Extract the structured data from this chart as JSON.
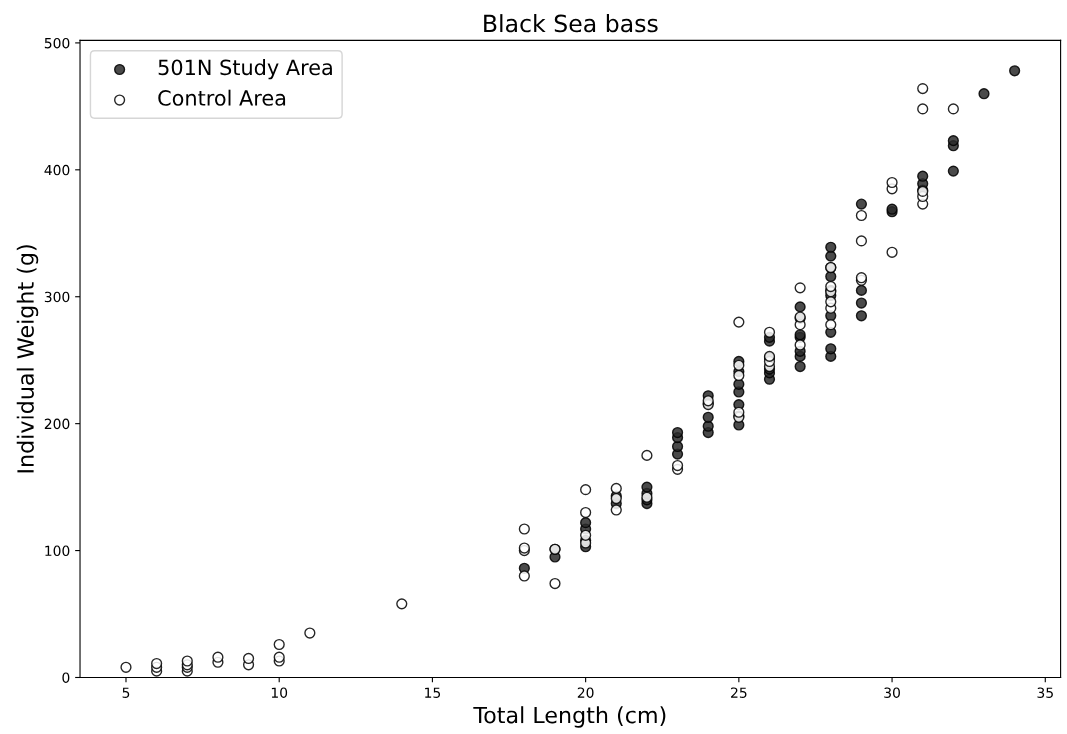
{
  "chart_data": {
    "type": "scatter",
    "title": "Black Sea bass",
    "xlabel": "Total Length (cm)",
    "ylabel": "Individual Weight (g)",
    "series": [
      {
        "name": "501N Study Area",
        "color": "#2a2a2a",
        "x": [
          18,
          19,
          19,
          20,
          20,
          20,
          20,
          21,
          21,
          22,
          22,
          22,
          22,
          23,
          23,
          23,
          23,
          24,
          24,
          24,
          24,
          24,
          25,
          25,
          25,
          25,
          25,
          25,
          25,
          26,
          26,
          26,
          26,
          26,
          26,
          27,
          27,
          27,
          27,
          27,
          27,
          27,
          28,
          28,
          28,
          28,
          28,
          28,
          28,
          28,
          28,
          28,
          29,
          29,
          29,
          29,
          30,
          30,
          31,
          31,
          31,
          32,
          32,
          32,
          33,
          34
        ],
        "values": [
          86,
          95,
          101,
          103,
          108,
          117,
          122,
          137,
          143,
          137,
          140,
          145,
          150,
          176,
          182,
          189,
          193,
          193,
          198,
          205,
          216,
          222,
          199,
          206,
          215,
          225,
          231,
          241,
          249,
          235,
          240,
          243,
          252,
          265,
          268,
          245,
          253,
          257,
          268,
          270,
          283,
          292,
          253,
          259,
          272,
          285,
          301,
          305,
          316,
          323,
          332,
          339,
          285,
          295,
          305,
          373,
          367,
          369,
          384,
          389,
          395,
          399,
          419,
          423,
          460,
          478
        ]
      },
      {
        "name": "Control Area",
        "color": "#ffffff",
        "x": [
          5,
          6,
          6,
          6,
          7,
          7,
          7,
          7,
          8,
          8,
          9,
          9,
          10,
          10,
          10,
          11,
          14,
          18,
          18,
          18,
          18,
          19,
          19,
          20,
          20,
          20,
          20,
          21,
          21,
          21,
          22,
          22,
          23,
          23,
          24,
          24,
          25,
          25,
          25,
          25,
          25,
          26,
          26,
          26,
          26,
          27,
          27,
          27,
          27,
          28,
          28,
          28,
          28,
          28,
          28,
          29,
          29,
          29,
          29,
          30,
          30,
          30,
          31,
          31,
          31,
          31,
          31,
          32
        ],
        "values": [
          8,
          5,
          8,
          11,
          5,
          8,
          10,
          13,
          12,
          16,
          10,
          15,
          13,
          16,
          26,
          35,
          58,
          80,
          100,
          102,
          117,
          74,
          101,
          106,
          112,
          130,
          148,
          132,
          141,
          149,
          142,
          175,
          164,
          167,
          215,
          218,
          205,
          209,
          238,
          246,
          280,
          245,
          249,
          253,
          272,
          262,
          278,
          284,
          307,
          278,
          291,
          296,
          304,
          308,
          323,
          313,
          315,
          344,
          364,
          335,
          385,
          390,
          373,
          379,
          383,
          448,
          464,
          448
        ]
      }
    ],
    "xlim": [
      3.5,
      35.5
    ],
    "xticks": [
      5,
      10,
      15,
      20,
      25,
      30,
      35
    ],
    "ylim": [
      0,
      502
    ],
    "yticks": [
      0,
      100,
      200,
      300,
      400,
      500
    ],
    "grid": false,
    "legend": "top left",
    "marker": "circle"
  }
}
